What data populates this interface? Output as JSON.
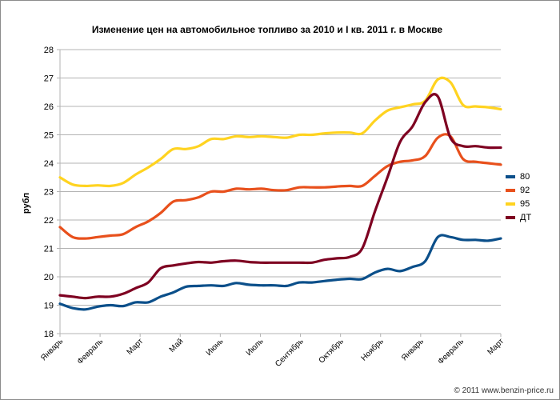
{
  "chart_data": {
    "type": "line",
    "title": "Изменение цен на автомобильное топливо за 2010 и I кв. 2011 г. в Москве",
    "ylabel": "рубл",
    "xlabel": "",
    "ylim": [
      18,
      28
    ],
    "y_ticks": [
      18,
      19,
      20,
      21,
      22,
      23,
      24,
      25,
      26,
      27,
      28
    ],
    "x_ticks": [
      "Январь",
      "Февраль",
      "Март",
      "Май",
      "Июнь",
      "Июль",
      "Сентябрь",
      "Октябрь",
      "Ноябрь",
      "Январь",
      "Февраль",
      "Март"
    ],
    "grid": true,
    "legend_position": "right",
    "series": [
      {
        "name": "80",
        "color": "#0b4f8a",
        "values": [
          19.05,
          18.9,
          18.85,
          18.95,
          19.0,
          18.97,
          19.1,
          19.1,
          19.3,
          19.45,
          19.65,
          19.68,
          19.7,
          19.68,
          19.78,
          19.72,
          19.7,
          19.7,
          19.68,
          19.8,
          19.8,
          19.85,
          19.9,
          19.93,
          19.92,
          20.15,
          20.28,
          20.2,
          20.35,
          20.55,
          21.4,
          21.4,
          21.3,
          21.3,
          21.27,
          21.35
        ]
      },
      {
        "name": "92",
        "color": "#e8501c",
        "values": [
          21.75,
          21.4,
          21.35,
          21.4,
          21.45,
          21.5,
          21.75,
          21.95,
          22.25,
          22.65,
          22.7,
          22.8,
          23.0,
          23.0,
          23.1,
          23.08,
          23.1,
          23.05,
          23.05,
          23.15,
          23.15,
          23.15,
          23.18,
          23.2,
          23.2,
          23.55,
          23.9,
          24.05,
          24.1,
          24.25,
          24.9,
          24.95,
          24.15,
          24.05,
          24.0,
          23.95
        ]
      },
      {
        "name": "95",
        "color": "#ffd320",
        "values": [
          23.5,
          23.25,
          23.2,
          23.22,
          23.2,
          23.3,
          23.6,
          23.85,
          24.15,
          24.5,
          24.5,
          24.6,
          24.85,
          24.85,
          24.95,
          24.92,
          24.95,
          24.92,
          24.9,
          25.0,
          25.0,
          25.05,
          25.08,
          25.08,
          25.05,
          25.5,
          25.85,
          25.97,
          26.07,
          26.2,
          26.95,
          26.85,
          26.05,
          26.0,
          25.97,
          25.9
        ]
      },
      {
        "name": "ДТ",
        "color": "#7e0021",
        "values": [
          19.35,
          19.3,
          19.25,
          19.3,
          19.3,
          19.4,
          19.6,
          19.8,
          20.3,
          20.4,
          20.47,
          20.52,
          20.5,
          20.55,
          20.57,
          20.52,
          20.5,
          20.5,
          20.5,
          20.5,
          20.5,
          20.6,
          20.65,
          20.7,
          21.0,
          22.3,
          23.5,
          24.75,
          25.3,
          26.15,
          26.35,
          24.9,
          24.6,
          24.6,
          24.55,
          24.55
        ]
      }
    ]
  },
  "footer": {
    "text": "© 2011 www.benzin-price.ru"
  }
}
